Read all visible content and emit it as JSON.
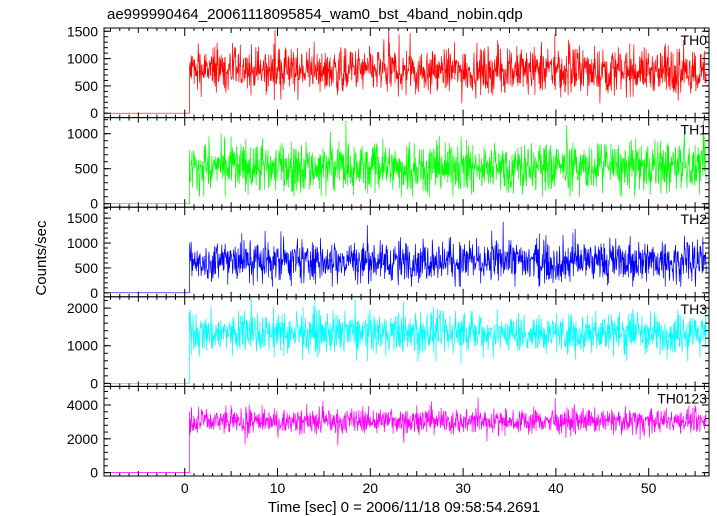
{
  "chart_data": {
    "type": "line",
    "title": "ae999990464_20061118095854_wam0_bst_4band_nobin.qdp",
    "xlabel": "Time [sec] 0 = 2006/11/18 09:58:54.2691",
    "ylabel": "Counts/sec",
    "xlim": [
      -8.7,
      56.5
    ],
    "x_ticks": [
      0,
      10,
      20,
      30,
      40,
      50
    ],
    "source_start": 0.5,
    "source_end": 56.2,
    "background_start": -8,
    "background_end": 0.5,
    "panels": [
      {
        "name": "TH0",
        "color": "#ff0000",
        "ylim": [
          -80,
          1560
        ],
        "yticks": [
          0,
          500,
          1000,
          1500
        ],
        "pre_level": 0,
        "mean": 780,
        "fluct": 300,
        "max": 1550,
        "min": 180
      },
      {
        "name": "TH1",
        "color": "#00ff00",
        "ylim": [
          -50,
          1230
        ],
        "yticks": [
          0,
          500,
          1000
        ],
        "pre_level": 0,
        "mean": 520,
        "fluct": 260,
        "max": 1190,
        "min": 100
      },
      {
        "name": "TH2",
        "color": "#0000ff",
        "ylim": [
          -80,
          1720
        ],
        "yticks": [
          0,
          500,
          1000,
          1500
        ],
        "pre_level": 0,
        "mean": 640,
        "fluct": 300,
        "max": 1650,
        "min": 120
      },
      {
        "name": "TH3",
        "color": "#00ffff",
        "ylim": [
          -80,
          2300
        ],
        "yticks": [
          0,
          1000,
          2000
        ],
        "pre_level": 0,
        "mean": 1340,
        "fluct": 380,
        "max": 2250,
        "min": 520
      },
      {
        "name": "TH0123",
        "color": "#ff00ff",
        "ylim": [
          -200,
          5100
        ],
        "yticks": [
          0,
          2000,
          4000
        ],
        "pre_level": 0,
        "mean": 3050,
        "fluct": 520,
        "max": 4900,
        "min": 1600
      }
    ]
  }
}
